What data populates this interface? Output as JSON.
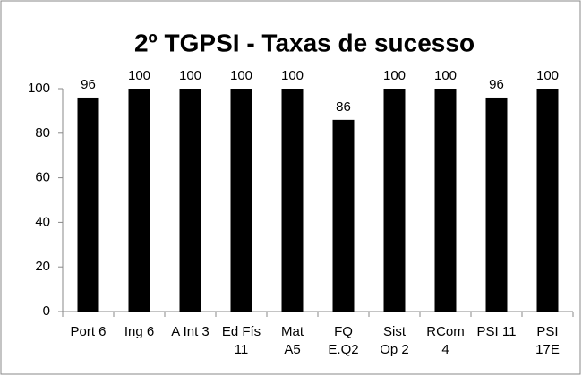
{
  "chart_data": {
    "type": "bar",
    "title": "2º TGPSI - Taxas de sucesso",
    "categories": [
      "Port 6",
      "Ing 6",
      "A Int 3",
      "Ed Fís\n11",
      "Mat\nA5",
      "FQ\nE.Q2",
      "Sist\nOp 2",
      "RCom\n4",
      "PSI 11",
      "PSI\n17E"
    ],
    "values": [
      96,
      100,
      100,
      100,
      100,
      86,
      100,
      100,
      96,
      100
    ],
    "color": "#000000",
    "ylim": [
      0,
      100
    ],
    "yticks": [
      0,
      20,
      40,
      60,
      80,
      100
    ],
    "grid": false
  }
}
